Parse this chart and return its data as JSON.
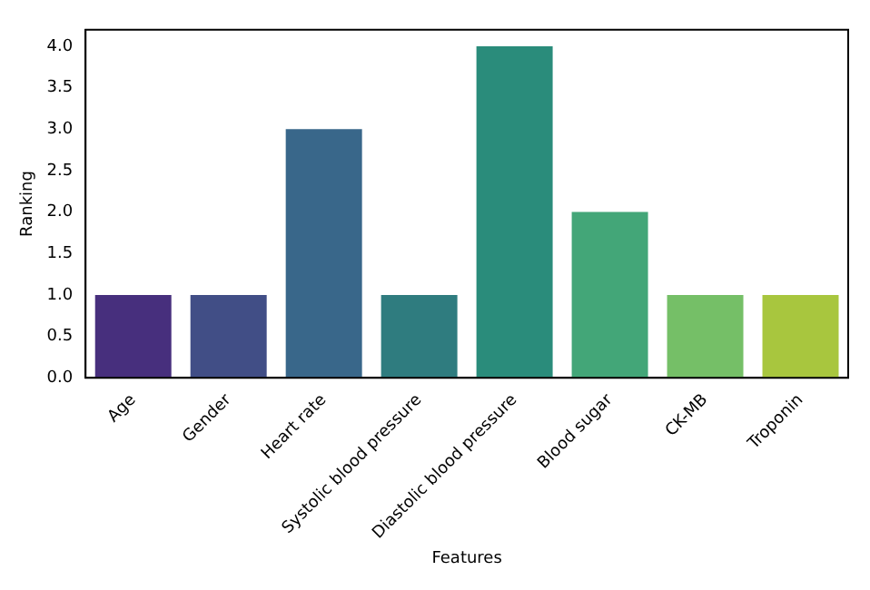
{
  "chart_data": {
    "type": "bar",
    "xlabel": "Features",
    "ylabel": "Ranking",
    "categories": [
      "Age",
      "Gender",
      "Heart rate",
      "Systolic blood pressure",
      "Diastolic blood pressure",
      "Blood sugar",
      "CK-MB",
      "Troponin"
    ],
    "values": [
      1,
      1,
      3,
      1,
      4,
      2,
      1,
      1
    ],
    "colors": [
      "#472f7d",
      "#414e86",
      "#39678a",
      "#2f7c7f",
      "#2a8c7b",
      "#43a678",
      "#75bf67",
      "#a8c63e"
    ],
    "ylim": [
      0,
      4.2
    ],
    "yticks": [
      {
        "value": 0,
        "label": "0.0"
      },
      {
        "value": 0.5,
        "label": "0.5"
      },
      {
        "value": 1,
        "label": "1.0"
      },
      {
        "value": 1.5,
        "label": "1.5"
      },
      {
        "value": 2,
        "label": "2.0"
      },
      {
        "value": 2.5,
        "label": "2.5"
      },
      {
        "value": 3,
        "label": "3.0"
      },
      {
        "value": 3.5,
        "label": "3.5"
      },
      {
        "value": 4,
        "label": "4.0"
      }
    ],
    "grid": false,
    "legend": false
  }
}
